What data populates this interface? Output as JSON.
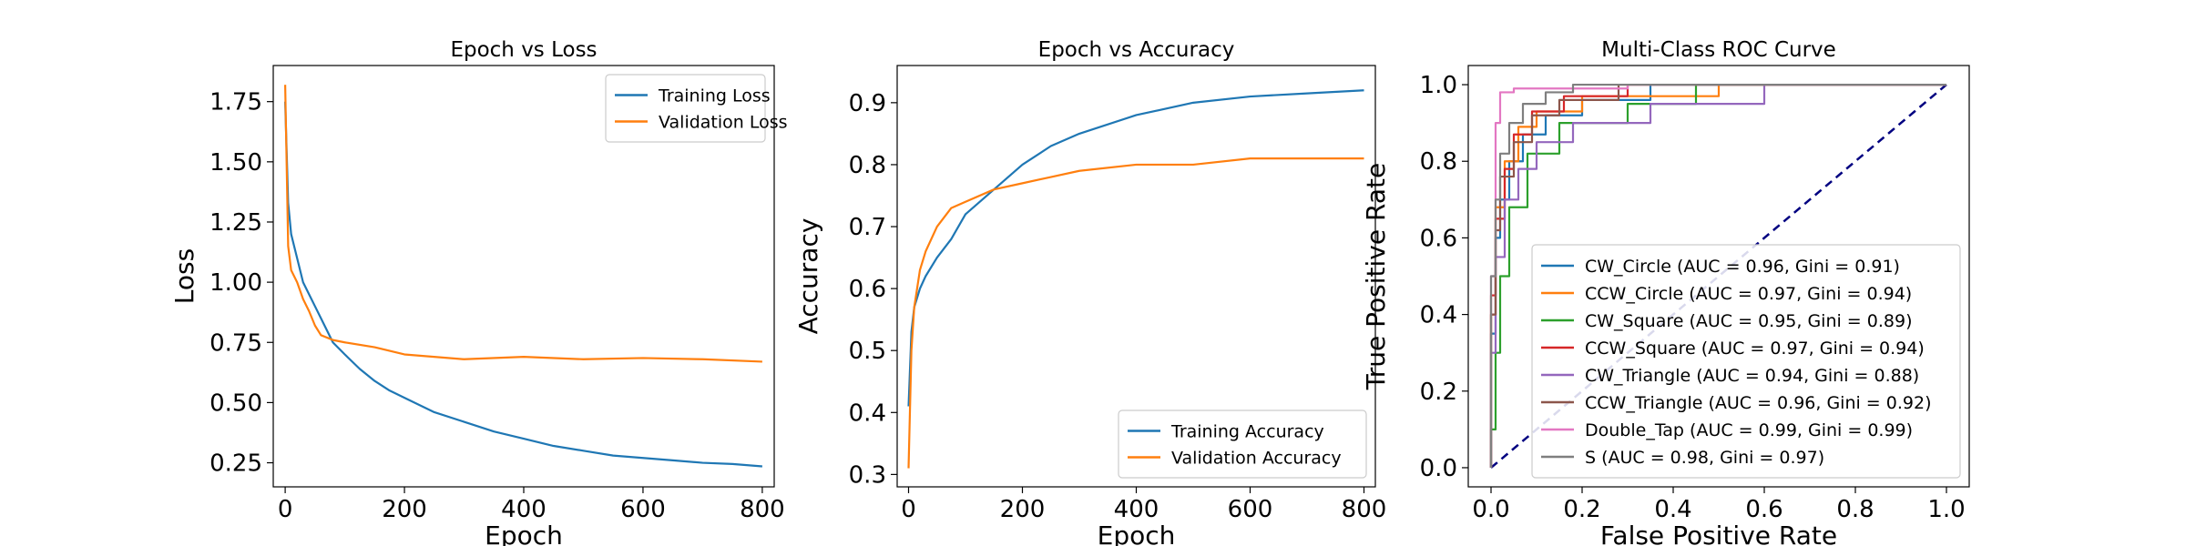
{
  "chart_data": [
    {
      "type": "line",
      "title": "Epoch vs Loss",
      "xlabel": "Epoch",
      "ylabel": "Loss",
      "xlim": [
        -20,
        820
      ],
      "ylim": [
        0.15,
        1.9
      ],
      "xticks": [
        0,
        200,
        400,
        600,
        800
      ],
      "yticks": [
        0.25,
        0.5,
        0.75,
        1.0,
        1.25,
        1.5,
        1.75
      ],
      "ytick_labels": [
        "0.25",
        "0.50",
        "0.75",
        "1.00",
        "1.25",
        "1.50",
        "1.75"
      ],
      "legend": "top-right",
      "grid": false,
      "series": [
        {
          "name": "Training Loss",
          "color": "#1f77b4",
          "x": [
            0,
            5,
            10,
            20,
            30,
            40,
            50,
            60,
            70,
            80,
            100,
            125,
            150,
            175,
            200,
            250,
            300,
            350,
            400,
            450,
            500,
            550,
            600,
            650,
            700,
            750,
            800
          ],
          "y": [
            1.75,
            1.33,
            1.2,
            1.1,
            1.0,
            0.95,
            0.9,
            0.85,
            0.8,
            0.75,
            0.7,
            0.64,
            0.59,
            0.55,
            0.52,
            0.46,
            0.42,
            0.38,
            0.35,
            0.32,
            0.3,
            0.28,
            0.27,
            0.26,
            0.25,
            0.245,
            0.235
          ]
        },
        {
          "name": "Validation Loss",
          "color": "#ff7f0e",
          "x": [
            0,
            5,
            10,
            20,
            30,
            40,
            50,
            60,
            80,
            100,
            150,
            200,
            300,
            400,
            500,
            600,
            700,
            800
          ],
          "y": [
            1.82,
            1.15,
            1.05,
            1.0,
            0.93,
            0.88,
            0.82,
            0.78,
            0.76,
            0.75,
            0.73,
            0.7,
            0.68,
            0.69,
            0.68,
            0.685,
            0.68,
            0.67
          ]
        }
      ]
    },
    {
      "type": "line",
      "title": "Epoch vs Accuracy",
      "xlabel": "Epoch",
      "ylabel": "Accuracy",
      "xlim": [
        -20,
        820
      ],
      "ylim": [
        0.28,
        0.96
      ],
      "xticks": [
        0,
        200,
        400,
        600,
        800
      ],
      "yticks": [
        0.3,
        0.4,
        0.5,
        0.6,
        0.7,
        0.8,
        0.9
      ],
      "ytick_labels": [
        "0.3",
        "0.4",
        "0.5",
        "0.6",
        "0.7",
        "0.8",
        "0.9"
      ],
      "legend": "bottom-right",
      "grid": false,
      "series": [
        {
          "name": "Training Accuracy",
          "color": "#1f77b4",
          "x": [
            0,
            5,
            10,
            20,
            30,
            50,
            75,
            100,
            150,
            200,
            250,
            300,
            400,
            500,
            600,
            700,
            800
          ],
          "y": [
            0.41,
            0.53,
            0.57,
            0.6,
            0.62,
            0.65,
            0.68,
            0.72,
            0.76,
            0.8,
            0.83,
            0.85,
            0.88,
            0.9,
            0.91,
            0.915,
            0.92
          ]
        },
        {
          "name": "Validation Accuracy",
          "color": "#ff7f0e",
          "x": [
            0,
            5,
            10,
            20,
            30,
            50,
            75,
            100,
            150,
            200,
            250,
            300,
            400,
            500,
            600,
            700,
            800
          ],
          "y": [
            0.31,
            0.5,
            0.57,
            0.63,
            0.66,
            0.7,
            0.73,
            0.74,
            0.76,
            0.77,
            0.78,
            0.79,
            0.8,
            0.8,
            0.81,
            0.81,
            0.81
          ]
        }
      ]
    },
    {
      "type": "line",
      "title": "Multi-Class ROC Curve",
      "xlabel": "False Positive Rate",
      "ylabel": "True Positive Rate",
      "xlim": [
        -0.05,
        1.05
      ],
      "ylim": [
        -0.05,
        1.05
      ],
      "xticks": [
        0.0,
        0.2,
        0.4,
        0.6,
        0.8,
        1.0
      ],
      "xtick_labels": [
        "0.0",
        "0.2",
        "0.4",
        "0.6",
        "0.8",
        "1.0"
      ],
      "yticks": [
        0.0,
        0.2,
        0.4,
        0.6,
        0.8,
        1.0
      ],
      "ytick_labels": [
        "0.0",
        "0.2",
        "0.4",
        "0.6",
        "0.8",
        "1.0"
      ],
      "legend": "bottom-right",
      "grid": false,
      "diagonal": {
        "color": "#000080",
        "style": "dashed",
        "x": [
          0,
          1
        ],
        "y": [
          0,
          1
        ]
      },
      "series": [
        {
          "name": "CW_Circle (AUC = 0.96, Gini = 0.91)",
          "color": "#1f77b4",
          "x": [
            0,
            0,
            0.01,
            0.01,
            0.02,
            0.02,
            0.04,
            0.04,
            0.07,
            0.07,
            0.12,
            0.12,
            0.2,
            0.2,
            0.35,
            0.35,
            1.0
          ],
          "y": [
            0,
            0.35,
            0.35,
            0.6,
            0.6,
            0.7,
            0.7,
            0.8,
            0.8,
            0.87,
            0.87,
            0.92,
            0.92,
            0.96,
            0.96,
            1.0,
            1.0
          ]
        },
        {
          "name": "CCW_Circle (AUC = 0.97, Gini = 0.94)",
          "color": "#ff7f0e",
          "x": [
            0,
            0,
            0.01,
            0.01,
            0.03,
            0.03,
            0.06,
            0.06,
            0.1,
            0.1,
            0.2,
            0.2,
            0.5,
            0.5,
            1.0
          ],
          "y": [
            0,
            0.4,
            0.4,
            0.68,
            0.68,
            0.8,
            0.8,
            0.89,
            0.89,
            0.93,
            0.93,
            0.97,
            0.97,
            1.0,
            1.0
          ]
        },
        {
          "name": "CW_Square (AUC = 0.95, Gini = 0.89)",
          "color": "#2ca02c",
          "x": [
            0,
            0,
            0.01,
            0.01,
            0.02,
            0.02,
            0.04,
            0.04,
            0.08,
            0.08,
            0.15,
            0.15,
            0.3,
            0.3,
            0.45,
            0.45,
            1.0
          ],
          "y": [
            0,
            0.1,
            0.1,
            0.3,
            0.3,
            0.5,
            0.5,
            0.68,
            0.68,
            0.82,
            0.82,
            0.9,
            0.9,
            0.95,
            0.95,
            1.0,
            1.0
          ]
        },
        {
          "name": "CCW_Square (AUC = 0.97, Gini = 0.94)",
          "color": "#d62728",
          "x": [
            0,
            0,
            0.01,
            0.01,
            0.03,
            0.03,
            0.05,
            0.05,
            0.09,
            0.09,
            0.16,
            0.16,
            0.3,
            0.3,
            1.0
          ],
          "y": [
            0,
            0.45,
            0.45,
            0.65,
            0.65,
            0.78,
            0.78,
            0.87,
            0.87,
            0.93,
            0.93,
            0.97,
            0.97,
            1.0,
            1.0
          ]
        },
        {
          "name": "CW_Triangle (AUC = 0.94, Gini = 0.88)",
          "color": "#9467bd",
          "x": [
            0,
            0,
            0.01,
            0.01,
            0.03,
            0.03,
            0.06,
            0.06,
            0.1,
            0.1,
            0.18,
            0.18,
            0.35,
            0.35,
            0.6,
            0.6,
            1.0
          ],
          "y": [
            0,
            0.3,
            0.3,
            0.55,
            0.55,
            0.7,
            0.7,
            0.78,
            0.78,
            0.85,
            0.85,
            0.9,
            0.9,
            0.95,
            0.95,
            1.0,
            1.0
          ]
        },
        {
          "name": "CCW_Triangle (AUC = 0.96, Gini = 0.92)",
          "color": "#8c564b",
          "x": [
            0,
            0,
            0.01,
            0.01,
            0.02,
            0.02,
            0.05,
            0.05,
            0.09,
            0.09,
            0.15,
            0.15,
            0.28,
            0.28,
            1.0
          ],
          "y": [
            0,
            0.4,
            0.4,
            0.62,
            0.62,
            0.76,
            0.76,
            0.85,
            0.85,
            0.92,
            0.92,
            0.96,
            0.96,
            1.0,
            1.0
          ]
        },
        {
          "name": "Double_Tap (AUC = 0.99, Gini = 0.99)",
          "color": "#e377c2",
          "x": [
            0,
            0,
            0.01,
            0.01,
            0.02,
            0.02,
            0.05,
            0.05,
            0.3,
            0.3,
            1.0
          ],
          "y": [
            0,
            0.5,
            0.5,
            0.9,
            0.9,
            0.98,
            0.98,
            0.99,
            0.99,
            1.0,
            1.0
          ]
        },
        {
          "name": "S (AUC = 0.98, Gini = 0.97)",
          "color": "#7f7f7f",
          "x": [
            0,
            0,
            0.01,
            0.01,
            0.02,
            0.02,
            0.04,
            0.04,
            0.07,
            0.07,
            0.12,
            0.12,
            0.18,
            0.18,
            1.0
          ],
          "y": [
            0,
            0.5,
            0.5,
            0.7,
            0.7,
            0.82,
            0.82,
            0.9,
            0.9,
            0.95,
            0.95,
            0.98,
            0.98,
            1.0,
            1.0
          ]
        }
      ]
    }
  ]
}
